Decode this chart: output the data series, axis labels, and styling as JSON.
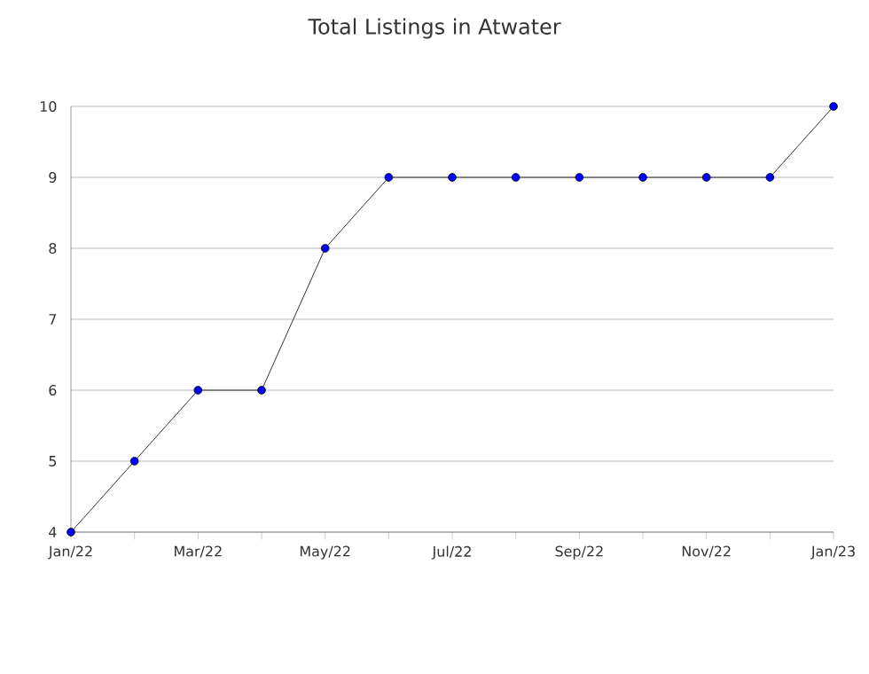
{
  "chart_data": {
    "type": "line",
    "title": "Total Listings in Atwater",
    "categories": [
      "Jan/22",
      null,
      "Mar/22",
      null,
      "May/22",
      null,
      "Jul/22",
      null,
      "Sep/22",
      null,
      "Nov/22",
      null,
      "Jan/23"
    ],
    "series": [
      {
        "color": "#0000ff",
        "values": [
          4,
          5,
          6,
          6,
          8,
          9,
          9,
          9,
          9,
          9,
          9,
          9,
          10
        ]
      }
    ],
    "ylim": [
      4,
      10
    ],
    "yticks": [
      4,
      5,
      6,
      7,
      8,
      9,
      10
    ],
    "grid": "y",
    "marker": "circle",
    "line_style": "solid"
  }
}
